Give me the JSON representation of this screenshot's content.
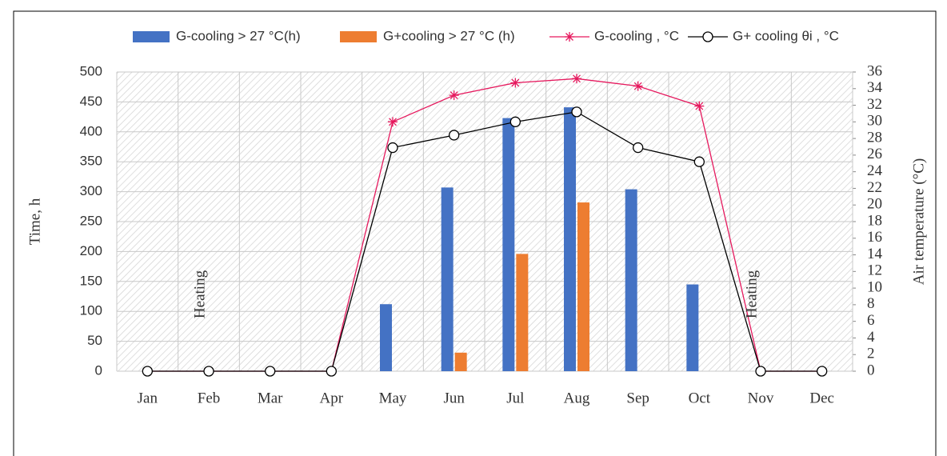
{
  "chart_data": {
    "type": "bar",
    "categories": [
      "Jan",
      "Feb",
      "Mar",
      "Apr",
      "May",
      "Jun",
      "Jul",
      "Aug",
      "Sep",
      "Oct",
      "Nov",
      "Dec"
    ],
    "series": [
      {
        "name": "G-cooling > 27 °C(h)",
        "type": "bar",
        "color": "#4472c4",
        "values": [
          0,
          0,
          0,
          0,
          112,
          307,
          423,
          441,
          304,
          145,
          0,
          0
        ]
      },
      {
        "name": "G+cooling > 27 °C (h)",
        "type": "bar",
        "color": "#ed7d31",
        "values": [
          0,
          0,
          0,
          0,
          0,
          31,
          196,
          282,
          0,
          0,
          0,
          0
        ]
      },
      {
        "name": "G-cooling , °C",
        "type": "line",
        "marker": "star",
        "axis": "y2",
        "color": "#e6195e",
        "values": [
          0,
          0,
          0,
          0,
          30,
          33.2,
          34.7,
          35.2,
          34.3,
          31.9,
          0,
          0
        ]
      },
      {
        "name": "G+ cooling θi , °C",
        "type": "line",
        "marker": "circle",
        "axis": "y2",
        "color": "#000000",
        "values": [
          0,
          0,
          0,
          0,
          26.9,
          28.4,
          30,
          31.2,
          26.9,
          25.2,
          0,
          0
        ]
      }
    ],
    "ylabel": "Time, h",
    "y2label": "Air temperature (°C)",
    "ylim": [
      0,
      500
    ],
    "yticks": [
      0,
      50,
      100,
      150,
      200,
      250,
      300,
      350,
      400,
      450,
      500
    ],
    "y2lim": [
      0,
      36
    ],
    "y2ticks": [
      0,
      2,
      4,
      6,
      8,
      10,
      12,
      14,
      16,
      18,
      20,
      22,
      24,
      26,
      28,
      30,
      32,
      34,
      36
    ],
    "annotations": [
      {
        "text": "Heating",
        "category": 1
      },
      {
        "text": "Heating",
        "category": 10
      }
    ],
    "grid": true,
    "legend": "top"
  }
}
